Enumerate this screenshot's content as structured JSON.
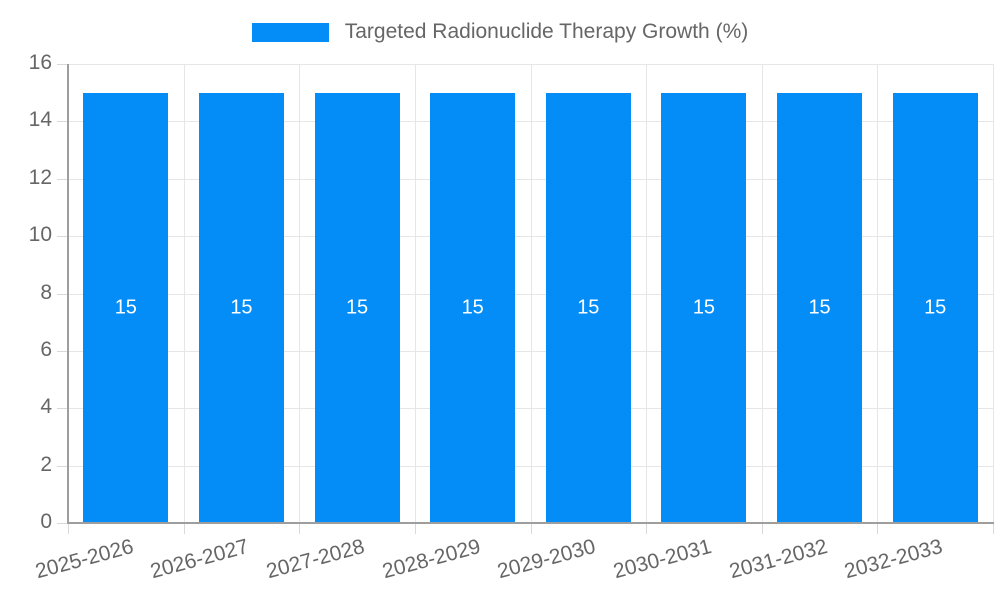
{
  "chart_data": {
    "type": "bar",
    "title": "",
    "legend": {
      "label": "Targeted Radionuclide Therapy Growth (%)",
      "position": "top"
    },
    "categories": [
      "2025-2026",
      "2026-2027",
      "2027-2028",
      "2028-2029",
      "2029-2030",
      "2030-2031",
      "2031-2032",
      "2032-2033"
    ],
    "values": [
      15,
      15,
      15,
      15,
      15,
      15,
      15,
      15
    ],
    "bar_labels": [
      "15",
      "15",
      "15",
      "15",
      "15",
      "15",
      "15",
      "15"
    ],
    "xlabel": "",
    "ylabel": "",
    "ylim": [
      0,
      16
    ],
    "yticks": [
      0,
      2,
      4,
      6,
      8,
      10,
      12,
      14,
      16
    ],
    "grid": true,
    "legend_position": "top",
    "colors": {
      "bar": "#058DF7",
      "grid": "#E6E6E6",
      "tick": "#D9D9D9",
      "axis_border": "#9E9E9E",
      "tick_text": "#666666",
      "legend_text": "#666666",
      "bar_label_text": "#FFFFFF",
      "background": "#FFFFFF"
    }
  }
}
